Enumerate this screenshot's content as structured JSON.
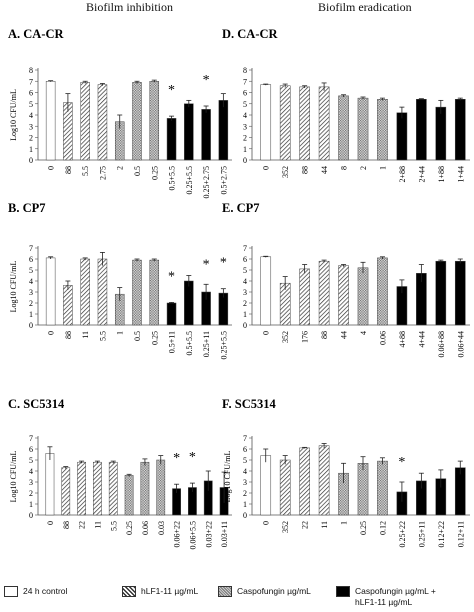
{
  "column_titles": [
    "Biofilm inhibition",
    "Biofilm eradication"
  ],
  "legend": [
    {
      "label": "24 h control",
      "pattern": "white"
    },
    {
      "label": "hLF1-11 µg/mL",
      "pattern": "diagonal"
    },
    {
      "label": "Caspofungin µg/mL",
      "pattern": "crosshatch"
    },
    {
      "label": "Caspofungin µg/mL +\nhLF1-11 µg/mL",
      "pattern": "black"
    }
  ],
  "colors": {
    "black": "#000000",
    "white": "#ffffff",
    "axis": "#555555"
  },
  "chart_data": [
    {
      "type": "bar",
      "title": "A. CA-CR",
      "ylabel": "Log10 CFU/mL",
      "ylim": [
        0,
        8
      ],
      "yticks": [
        0,
        1,
        2,
        3,
        4,
        5,
        6,
        7,
        8
      ],
      "categories": [
        "0",
        "88",
        "5.5",
        "2.75",
        "2",
        "0.5",
        "0.25",
        "0.5+5.5",
        "0.25+5.5",
        "0.25+2.75",
        "0.5+2.75"
      ],
      "values": [
        7.0,
        5.1,
        6.9,
        6.7,
        3.4,
        6.9,
        7.0,
        3.7,
        5.0,
        4.5,
        5.3
      ],
      "errors": [
        0.05,
        0.8,
        0.1,
        0.1,
        0.6,
        0.1,
        0.1,
        0.2,
        0.3,
        0.3,
        0.6
      ],
      "patterns": [
        "white",
        "diagonal",
        "diagonal",
        "diagonal",
        "crosshatch",
        "crosshatch",
        "crosshatch",
        "black",
        "black",
        "black",
        "black"
      ],
      "significant": [
        false,
        false,
        false,
        false,
        false,
        false,
        false,
        true,
        false,
        true,
        false
      ]
    },
    {
      "type": "bar",
      "title": "D. CA-CR",
      "ylabel": "",
      "ylim": [
        0,
        8
      ],
      "yticks": [
        0,
        1,
        2,
        3,
        4,
        5,
        6,
        7,
        8
      ],
      "categories": [
        "0",
        "352",
        "88",
        "44",
        "8",
        "2",
        "1",
        "2+88",
        "2+44",
        "1+88",
        "1+44"
      ],
      "values": [
        6.7,
        6.6,
        6.5,
        6.5,
        5.7,
        5.5,
        5.4,
        4.2,
        5.4,
        4.7,
        5.4
      ],
      "errors": [
        0.05,
        0.15,
        0.1,
        0.35,
        0.1,
        0.1,
        0.1,
        0.5,
        0.05,
        0.6,
        0.1
      ],
      "patterns": [
        "white",
        "diagonal",
        "diagonal",
        "diagonal",
        "crosshatch",
        "crosshatch",
        "crosshatch",
        "black",
        "black",
        "black",
        "black"
      ],
      "significant": [
        false,
        false,
        false,
        false,
        false,
        false,
        false,
        false,
        false,
        false,
        false
      ]
    },
    {
      "type": "bar",
      "title": "B. CP7",
      "ylabel": "Log10 CFU/mL",
      "ylim": [
        0,
        7
      ],
      "yticks": [
        0,
        1,
        2,
        3,
        4,
        5,
        6,
        7
      ],
      "categories": [
        "0",
        "88",
        "11",
        "5.5",
        "1",
        "0.5",
        "0.25",
        "0.5+11",
        "0.5+5.5",
        "0.25+11",
        "0.25+5.5"
      ],
      "values": [
        6.1,
        3.6,
        6.0,
        6.0,
        2.8,
        5.9,
        5.9,
        2.0,
        4.0,
        3.0,
        2.9
      ],
      "errors": [
        0.1,
        0.4,
        0.1,
        0.6,
        0.6,
        0.1,
        0.1,
        0.05,
        0.5,
        0.7,
        0.4
      ],
      "patterns": [
        "white",
        "diagonal",
        "diagonal",
        "diagonal",
        "crosshatch",
        "crosshatch",
        "crosshatch",
        "black",
        "black",
        "black",
        "black"
      ],
      "significant": [
        false,
        false,
        false,
        false,
        false,
        false,
        false,
        true,
        false,
        true,
        true
      ]
    },
    {
      "type": "bar",
      "title": "E. CP7",
      "ylabel": "",
      "ylim": [
        0,
        7
      ],
      "yticks": [
        0,
        1,
        2,
        3,
        4,
        5,
        6,
        7
      ],
      "categories": [
        "0",
        "352",
        "176",
        "88",
        "44",
        "4",
        "0.06",
        "4+88",
        "4+44",
        "0.06+88",
        "0.06+44"
      ],
      "values": [
        6.2,
        3.8,
        5.1,
        5.8,
        5.4,
        5.2,
        6.1,
        3.5,
        4.7,
        5.8,
        5.8
      ],
      "errors": [
        0.05,
        0.6,
        0.4,
        0.1,
        0.1,
        0.5,
        0.1,
        0.6,
        0.8,
        0.1,
        0.2
      ],
      "patterns": [
        "white",
        "diagonal",
        "diagonal",
        "diagonal",
        "diagonal",
        "crosshatch",
        "crosshatch",
        "black",
        "black",
        "black",
        "black"
      ],
      "significant": [
        false,
        false,
        false,
        false,
        false,
        false,
        false,
        false,
        false,
        false,
        false
      ]
    },
    {
      "type": "bar",
      "title": "C. SC5314",
      "ylabel": "Log10 CFU/mL",
      "ylim": [
        0,
        7
      ],
      "yticks": [
        0,
        1,
        2,
        3,
        4,
        5,
        6,
        7
      ],
      "categories": [
        "0",
        "88",
        "22",
        "11",
        "5.5",
        "0.25",
        "0.06",
        "0.03",
        "0.06+22",
        "0.06+5.5",
        "0.03+22",
        "0.03+11"
      ],
      "values": [
        5.6,
        4.3,
        4.8,
        4.8,
        4.8,
        3.6,
        4.8,
        5.0,
        2.4,
        2.5,
        3.1,
        2.5
      ],
      "errors": [
        0.6,
        0.1,
        0.1,
        0.1,
        0.1,
        0.1,
        0.3,
        0.4,
        0.4,
        0.4,
        0.9,
        1.4
      ],
      "patterns": [
        "white",
        "diagonal",
        "diagonal",
        "diagonal",
        "diagonal",
        "crosshatch",
        "crosshatch",
        "crosshatch",
        "black",
        "black",
        "black",
        "black"
      ],
      "significant": [
        false,
        false,
        false,
        false,
        false,
        false,
        false,
        false,
        true,
        true,
        false,
        false
      ]
    },
    {
      "type": "bar",
      "title": "F. SC5314",
      "ylabel": "Log10 CFU/mL",
      "ylim": [
        0,
        7
      ],
      "yticks": [
        0,
        1,
        2,
        3,
        4,
        5,
        6,
        7
      ],
      "categories": [
        "0",
        "352",
        "22",
        "11",
        "1",
        "0.25",
        "0.12",
        "0.25+22",
        "0.25+11",
        "0.12+22",
        "0.12+11"
      ],
      "values": [
        5.4,
        5.0,
        6.1,
        6.3,
        3.8,
        4.7,
        4.9,
        2.1,
        3.1,
        3.3,
        4.3
      ],
      "errors": [
        0.6,
        0.4,
        0.05,
        0.2,
        0.9,
        0.6,
        0.3,
        0.9,
        0.7,
        0.8,
        0.6
      ],
      "patterns": [
        "white",
        "diagonal",
        "diagonal",
        "diagonal",
        "crosshatch",
        "crosshatch",
        "crosshatch",
        "black",
        "black",
        "black",
        "black"
      ],
      "significant": [
        false,
        false,
        false,
        false,
        false,
        false,
        false,
        true,
        false,
        false,
        false
      ]
    }
  ]
}
